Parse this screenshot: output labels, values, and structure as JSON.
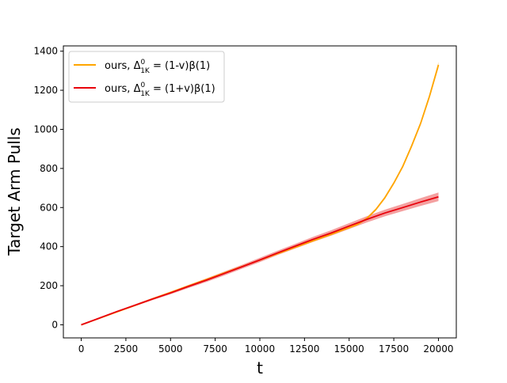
{
  "chart_data": {
    "type": "line",
    "title": "",
    "xlabel": "t",
    "ylabel": "Target Arm Pulls",
    "xlim": [
      -1000,
      21000
    ],
    "ylim": [
      -67,
      1427
    ],
    "xticks": [
      0,
      2500,
      5000,
      7500,
      10000,
      12500,
      15000,
      17500,
      20000
    ],
    "yticks": [
      0,
      200,
      400,
      600,
      800,
      1000,
      1200,
      1400
    ],
    "grid": false,
    "legend_position": "top-left",
    "series": [
      {
        "name": "ours, Δ_1K^0 = (1-v)β(1)",
        "legend_main": "ours, Δ",
        "legend_sup": "0",
        "legend_sub": "1K",
        "legend_tail": " = (1-v)β(1)",
        "color": "#ffa500",
        "band_color": "#ffa500",
        "x": [
          0,
          1000,
          2000,
          3000,
          4000,
          5000,
          6000,
          7000,
          8000,
          9000,
          10000,
          11000,
          12000,
          13000,
          14000,
          15000,
          15500,
          16000,
          16500,
          17000,
          17500,
          18000,
          18500,
          19000,
          19500,
          20000
        ],
        "y": [
          0,
          33,
          66,
          99,
          133,
          166,
          199,
          232,
          265,
          298,
          331,
          364,
          397,
          430,
          463,
          497,
          515,
          545,
          590,
          650,
          725,
          810,
          915,
          1030,
          1170,
          1330
        ],
        "band": [
          2,
          2,
          3,
          3,
          3,
          3,
          4,
          4,
          4,
          4,
          4,
          4,
          4,
          5,
          5,
          5,
          5,
          6,
          6,
          7,
          7,
          8,
          9,
          10,
          12,
          15
        ]
      },
      {
        "name": "ours, Δ_1K^0 = (1+v)β(1)",
        "legend_main": "ours, Δ",
        "legend_sup": "0",
        "legend_sub": "1K",
        "legend_tail": " = (1+v)β(1)",
        "color": "#e8000b",
        "band_color": "#f08080",
        "x": [
          0,
          1000,
          2000,
          3000,
          4000,
          5000,
          6000,
          7000,
          8000,
          9000,
          10000,
          11000,
          12000,
          13000,
          14000,
          15000,
          16000,
          17000,
          18000,
          19000,
          20000
        ],
        "y": [
          0,
          34,
          68,
          100,
          132,
          163,
          196,
          228,
          262,
          297,
          332,
          368,
          403,
          438,
          470,
          505,
          540,
          572,
          600,
          628,
          655
        ],
        "band": [
          2,
          3,
          4,
          5,
          6,
          7,
          8,
          9,
          10,
          10,
          11,
          11,
          12,
          13,
          14,
          15,
          16,
          17,
          18,
          20,
          22
        ]
      }
    ]
  }
}
